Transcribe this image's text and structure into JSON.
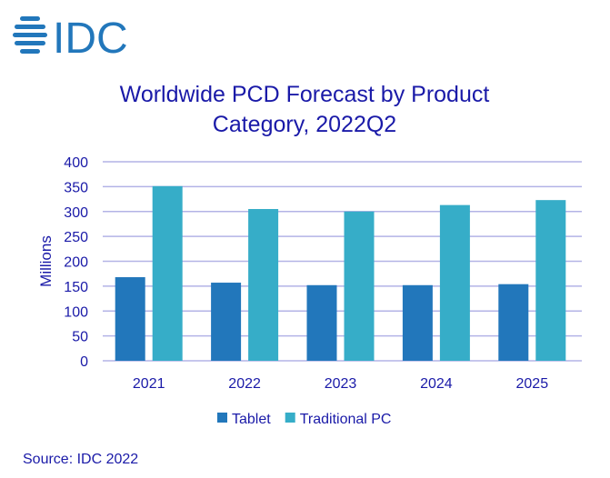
{
  "logo_text": "IDC",
  "source": "Source: IDC 2022",
  "colors": {
    "Tablet": "#2277bb",
    "Traditional PC": "#36adc8",
    "grid": "#b3b3e6",
    "text": "#1a1aa8"
  },
  "chart_data": {
    "type": "bar",
    "title": "Worldwide PCD Forecast by Product Category, 2022Q2",
    "ylabel": "Millions",
    "xlabel": "",
    "ylim": [
      0,
      400
    ],
    "yticks": [
      0,
      50,
      100,
      150,
      200,
      250,
      300,
      350,
      400
    ],
    "grid": true,
    "legend": "bottom",
    "categories": [
      "2021",
      "2022",
      "2023",
      "2024",
      "2025"
    ],
    "series": [
      {
        "name": "Tablet",
        "values": [
          168,
          157,
          152,
          152,
          154
        ]
      },
      {
        "name": "Traditional PC",
        "values": [
          351,
          305,
          300,
          313,
          323
        ]
      }
    ]
  }
}
